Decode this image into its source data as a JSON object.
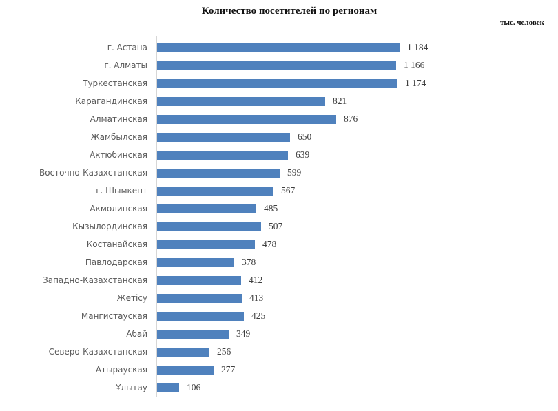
{
  "title": "Количество посетителей по регионам",
  "units_label": "тыс. человек",
  "colors": {
    "bar": "#4f81bd",
    "axis_line": "#d6d6d6",
    "category_text": "#595959",
    "value_text": "#3f3f3f",
    "title_text": "#111111",
    "background": "#ffffff"
  },
  "chart_data": {
    "type": "bar",
    "orientation": "horizontal",
    "title": "Количество посетителей по регионам",
    "units": "тыс. человек",
    "grid": false,
    "legend": false,
    "xlim": [
      0,
      1250
    ],
    "bar_color": "#4f81bd",
    "categories": [
      "г. Астана",
      "г. Алматы",
      "Туркестанская",
      "Карагандинская",
      "Алматинская",
      "Жамбылская",
      "Актюбинская",
      "Восточно-Казахстанская",
      "г. Шымкент",
      "Акмолинская",
      "Кызылординская",
      "Костанайская",
      "Павлодарская",
      "Западно-Казахстанская",
      "Жетісу",
      "Мангистауская",
      "Абай",
      "Северо-Казахстанская",
      "Атырауская",
      "Ұлытау"
    ],
    "values": [
      1184,
      1166,
      1174,
      821,
      876,
      650,
      639,
      599,
      567,
      485,
      507,
      478,
      378,
      412,
      413,
      425,
      349,
      256,
      277,
      106
    ],
    "value_labels": [
      "1 184",
      "1 166",
      "1 174",
      "821",
      "876",
      "650",
      "639",
      "599",
      "567",
      "485",
      "507",
      "478",
      "378",
      "412",
      "413",
      "425",
      "349",
      "256",
      "277",
      "106"
    ]
  }
}
